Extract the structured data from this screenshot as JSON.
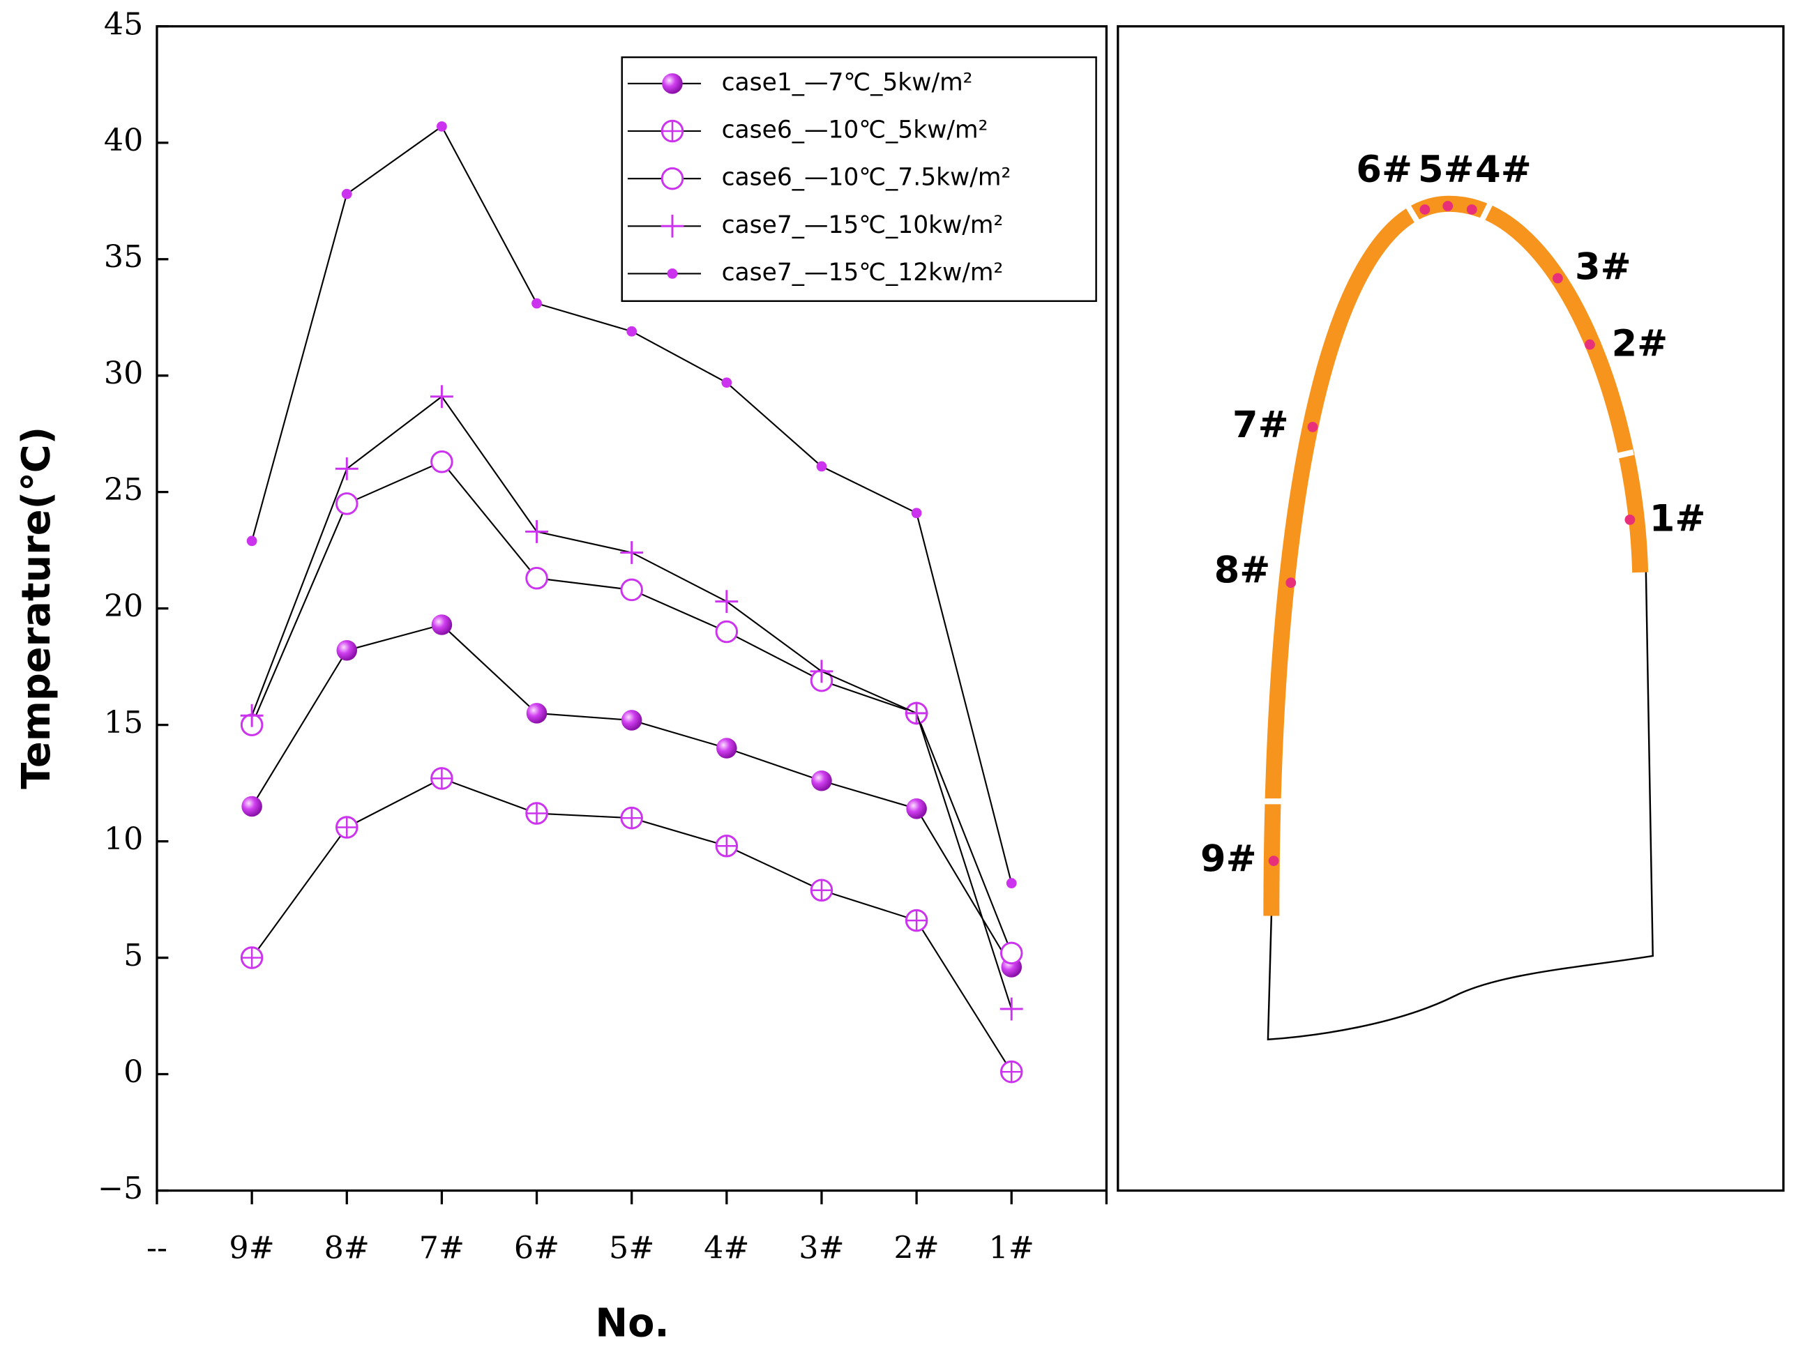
{
  "chart_data": {
    "type": "line",
    "y_label": "Temperature(℃)",
    "x_label": "No.",
    "categories": [
      "--",
      "9#",
      "8#",
      "7#",
      "6#",
      "5#",
      "4#",
      "3#",
      "2#",
      "1#"
    ],
    "ylim": [
      -5,
      45
    ],
    "yticks": [
      {
        "value": -5,
        "label": "−5"
      },
      0,
      5,
      10,
      15,
      20,
      25,
      30,
      35,
      40,
      45
    ],
    "series": [
      {
        "name": "case1_—7℃_5kw/m²",
        "color": "#cc33ee",
        "marker": "sphere",
        "values": [
          null,
          11.5,
          18.2,
          19.3,
          15.5,
          15.2,
          14.0,
          12.6,
          11.4,
          4.6
        ]
      },
      {
        "name": "case6_—10℃_5kw/m²",
        "color": "#cc33ee",
        "marker": "circle-plus",
        "values": [
          null,
          5.0,
          10.6,
          12.7,
          11.2,
          11.0,
          9.8,
          7.9,
          6.6,
          0.1
        ]
      },
      {
        "name": "case6_—10℃_7.5kw/m²",
        "color": "#cc33ee",
        "marker": "open-circle",
        "values": [
          null,
          15.0,
          24.5,
          26.3,
          21.3,
          20.8,
          19.0,
          16.9,
          15.5,
          5.2
        ]
      },
      {
        "name": "case7_—15℃_10kw/m²",
        "color": "#cc33ee",
        "marker": "plus",
        "values": [
          null,
          15.4,
          26.0,
          29.1,
          23.3,
          22.4,
          20.3,
          17.3,
          15.5,
          2.8
        ]
      },
      {
        "name": "case7_—15℃_12kw/m²",
        "color": "#cc33ee",
        "marker": "dot",
        "values": [
          null,
          22.9,
          37.8,
          40.7,
          33.1,
          31.9,
          29.7,
          26.1,
          24.1,
          8.2
        ]
      }
    ]
  },
  "diagram": {
    "points": [
      "1#",
      "2#",
      "3#",
      "4#",
      "5#",
      "6#",
      "7#",
      "8#",
      "9#"
    ]
  }
}
